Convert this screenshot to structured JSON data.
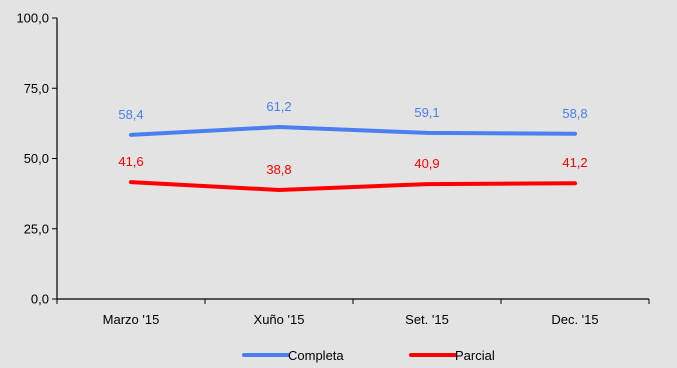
{
  "chart_data": {
    "type": "line",
    "categories": [
      "Marzo '15",
      "Xuño '15",
      "Set. '15",
      "Dec. '15"
    ],
    "series": [
      {
        "name": "Completa",
        "values": [
          58.4,
          61.2,
          59.1,
          58.8
        ],
        "labels": [
          "58,4",
          "61,2",
          "59,1",
          "58,8"
        ],
        "color": "#4a7ff0"
      },
      {
        "name": "Parcial",
        "values": [
          41.6,
          38.8,
          40.9,
          41.2
        ],
        "labels": [
          "41,6",
          "38,8",
          "40,9",
          "41,2"
        ],
        "color": "#ff0000"
      }
    ],
    "ylim": [
      0,
      100
    ],
    "yticks": [
      0,
      25,
      50,
      75,
      100
    ],
    "ytick_labels": [
      "0,0",
      "25,0",
      "50,0",
      "75,0",
      "100,0"
    ],
    "grid": false,
    "legend_position": "bottom",
    "background": "#e3e3e3"
  }
}
